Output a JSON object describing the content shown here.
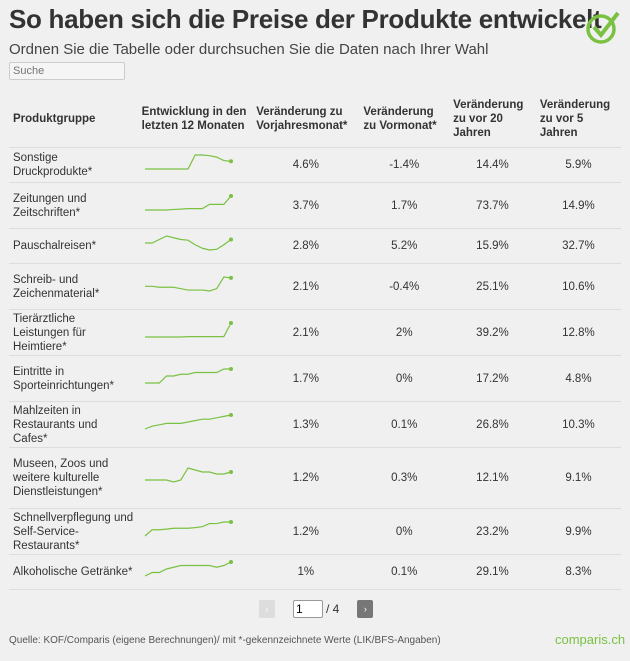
{
  "title": "So haben sich die Preise der Produkte entwickelt",
  "subtitle": "Ordnen Sie die Tabelle oder durchsuchen Sie die Daten nach Ihrer Wahl",
  "search": {
    "placeholder": "Suche"
  },
  "accent": "#7ac142",
  "columns": [
    "Produktgruppe",
    "Entwicklung in den letzten 12 Monaten",
    "Veränderung zu Vorjahresmonat*",
    "Veränderung zu Vormonat*",
    "Veränderung zu vor 20 Jahren",
    "Veränderung zu vor 5 Jahren"
  ],
  "rows": [
    {
      "name": "Sonstige Druckprodukte*",
      "trend": [
        0,
        0,
        0,
        0,
        0,
        0,
        0,
        10,
        10,
        9.5,
        8.5,
        6,
        5.5
      ],
      "yoy": "4.6%",
      "mom": "-1.4%",
      "y20": "14.4%",
      "y5": "5.9%"
    },
    {
      "name": "Zeitungen und Zeitschriften*",
      "trend": [
        0,
        0,
        0,
        0,
        0.2,
        0.3,
        0.5,
        0.5,
        0.5,
        2,
        2,
        2,
        5
      ],
      "yoy": "3.7%",
      "mom": "1.7%",
      "y20": "73.7%",
      "y5": "14.9%"
    },
    {
      "name": "Pauschalreisen*",
      "trend": [
        6,
        6,
        7,
        8,
        7.5,
        7,
        6.8,
        5.5,
        4.5,
        4,
        4.2,
        5.5,
        7
      ],
      "yoy": "2.8%",
      "mom": "5.2%",
      "y20": "15.9%",
      "y5": "32.7%"
    },
    {
      "name": "Schreib- und Zeichenmaterial*",
      "trend": [
        5,
        5,
        4.8,
        4.8,
        4.8,
        4.5,
        4.2,
        4.2,
        4.2,
        4,
        4.5,
        7,
        6.8
      ],
      "yoy": "2.1%",
      "mom": "-0.4%",
      "y20": "25.1%",
      "y5": "10.6%"
    },
    {
      "name": "Tierärztliche Leistungen für Heimtiere*",
      "trend": [
        0,
        0,
        0,
        0,
        0,
        0,
        0.1,
        0.1,
        0.1,
        0.1,
        0.1,
        0.1,
        4
      ],
      "yoy": "2.1%",
      "mom": "2%",
      "y20": "39.2%",
      "y5": "12.8%"
    },
    {
      "name": "Eintritte in Sporteinrichtungen*",
      "trend": [
        0,
        0,
        0,
        2,
        2,
        2.5,
        2.5,
        3,
        3,
        3,
        3,
        4,
        4
      ],
      "yoy": "1.7%",
      "mom": "0%",
      "y20": "17.2%",
      "y5": "4.8%"
    },
    {
      "name": "Mahlzeiten in Restaurants und Cafes*",
      "trend": [
        0,
        1,
        1.5,
        2,
        2,
        2,
        2.5,
        3,
        3.5,
        3.5,
        4,
        4.5,
        5
      ],
      "yoy": "1.3%",
      "mom": "0.1%",
      "y20": "26.8%",
      "y5": "10.3%"
    },
    {
      "name": "Museen, Zoos und weitere kulturelle Dienstleistungen*",
      "trend": [
        3,
        3,
        3,
        3,
        2.5,
        3,
        6,
        5.5,
        5,
        5,
        4.5,
        4.5,
        5
      ],
      "yoy": "1.2%",
      "mom": "0.3%",
      "y20": "12.1%",
      "y5": "9.1%"
    },
    {
      "name": "Schnellverpflegung und Self-Service-Restaurants*",
      "trend": [
        0,
        2,
        2,
        2.2,
        2.5,
        2.5,
        2.5,
        2.7,
        3,
        4,
        4,
        4.5,
        4.5
      ],
      "yoy": "1.2%",
      "mom": "0%",
      "y20": "23.2%",
      "y5": "9.9%"
    },
    {
      "name": "Alkoholische Getränke*",
      "trend": [
        0,
        1,
        1,
        2,
        2.5,
        3,
        3,
        3,
        3,
        3,
        2.5,
        3,
        4
      ],
      "yoy": "1%",
      "mom": "0.1%",
      "y20": "29.1%",
      "y5": "8.3%"
    }
  ],
  "pager": {
    "prev": "‹",
    "page": "1",
    "total": "/ 4",
    "next": "›"
  },
  "footer": {
    "source": "Quelle: KOF/Comparis (eigene Berechnungen)/ mit *-gekennzeichnete Werte (LIK/BFS-Angaben)",
    "brand": "comparis.ch"
  }
}
